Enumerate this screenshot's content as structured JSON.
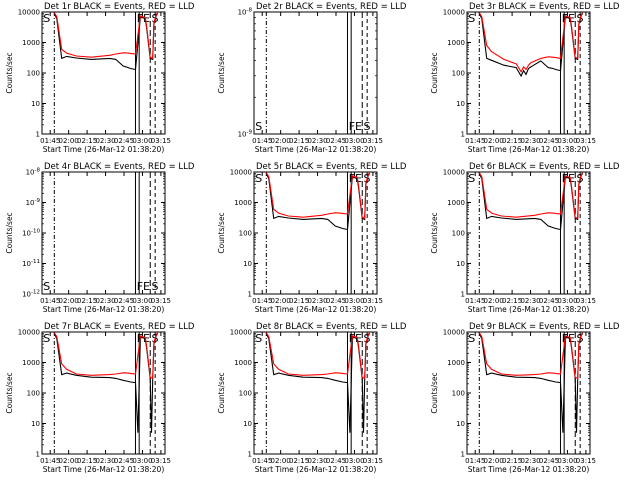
{
  "figure": {
    "background": "#ffffff",
    "events_color": "#000000",
    "lld_color": "#ff0000"
  },
  "chart_data": [
    {
      "type": "line",
      "title": "Det 1r BLACK = Events, RED = LLD",
      "xlabel": "Start Time (26-Mar-12 01:38:20)",
      "ylabel": "Counts/sec",
      "yscale": "log",
      "ylim": [
        1,
        10000
      ],
      "yticks": [
        "1",
        "10",
        "100",
        "1000",
        "10000"
      ],
      "xticks": [
        "01:45",
        "02:00",
        "02:15",
        "02:30",
        "02:45",
        "03:00",
        "03:15"
      ],
      "xlim_minutes_from_start": [
        0,
        100
      ],
      "markers": [
        "S",
        "FE",
        "S"
      ],
      "has_data": true,
      "profile": "a",
      "series": [
        {
          "name": "Events",
          "color": "#000000",
          "x": [
            10,
            12,
            16,
            20,
            28,
            40,
            55,
            60,
            66,
            70,
            72,
            76,
            80,
            84,
            85,
            88,
            90,
            91,
            93,
            94
          ],
          "y": [
            9000,
            6000,
            300,
            350,
            310,
            280,
            300,
            280,
            170,
            150,
            140,
            130,
            7000,
            6000,
            3000,
            300,
            280,
            4000,
            8000,
            9000
          ]
        },
        {
          "name": "LLD",
          "color": "#ff0000",
          "x": [
            10,
            12,
            16,
            20,
            28,
            40,
            55,
            60,
            66,
            70,
            72,
            76,
            80,
            84,
            85,
            88,
            90,
            91,
            93,
            94
          ],
          "y": [
            9500,
            7000,
            600,
            450,
            360,
            330,
            380,
            420,
            460,
            450,
            440,
            420,
            7500,
            6500,
            3500,
            330,
            300,
            4500,
            8500,
            9500
          ]
        }
      ]
    },
    {
      "type": "line",
      "title": "Det 2r BLACK = Events, RED = LLD",
      "xlabel": "Start Time (26-Mar-12 01:38:20)",
      "ylabel": "Counts/sec",
      "yscale": "log",
      "ylim": [
        1e-09,
        1e-08
      ],
      "yticks": [
        "10^-9",
        "10^-8"
      ],
      "xticks": [
        "01:45",
        "02:00",
        "02:15",
        "02:30",
        "02:45",
        "03:00",
        "03:15"
      ],
      "xlim_minutes_from_start": [
        0,
        100
      ],
      "markers": [
        "S",
        "FE",
        "S"
      ],
      "has_data": false,
      "series": []
    },
    {
      "type": "line",
      "title": "Det 3r BLACK = Events, RED = LLD",
      "xlabel": "Start Time (26-Mar-12 01:38:20)",
      "ylabel": "Counts/sec",
      "yscale": "log",
      "ylim": [
        1,
        10000
      ],
      "yticks": [
        "1",
        "10",
        "100",
        "1000",
        "10000"
      ],
      "xticks": [
        "01:45",
        "02:00",
        "02:15",
        "02:30",
        "02:45",
        "03:00",
        "03:15"
      ],
      "xlim_minutes_from_start": [
        0,
        100
      ],
      "markers": [
        "S",
        "FE",
        "S"
      ],
      "has_data": true,
      "profile": "b",
      "series": [
        {
          "name": "Events",
          "color": "#000000",
          "x": [
            10,
            12,
            16,
            20,
            30,
            40,
            44,
            46,
            48,
            50,
            52,
            60,
            66,
            70,
            72,
            76,
            80,
            84,
            85,
            88,
            90,
            91,
            93,
            94
          ],
          "y": [
            9000,
            6000,
            300,
            260,
            180,
            150,
            80,
            120,
            90,
            140,
            160,
            250,
            150,
            140,
            130,
            120,
            7000,
            6000,
            3000,
            300,
            280,
            4000,
            8000,
            9000
          ]
        },
        {
          "name": "LLD",
          "color": "#ff0000",
          "x": [
            10,
            12,
            16,
            20,
            30,
            40,
            44,
            46,
            48,
            50,
            52,
            60,
            66,
            70,
            72,
            76,
            80,
            84,
            85,
            88,
            90,
            91,
            93,
            94
          ],
          "y": [
            9500,
            7000,
            800,
            500,
            280,
            200,
            110,
            160,
            130,
            180,
            220,
            300,
            340,
            330,
            320,
            300,
            7500,
            6500,
            3500,
            330,
            300,
            4500,
            8500,
            9500
          ]
        }
      ]
    },
    {
      "type": "line",
      "title": "Det 4r BLACK = Events, RED = LLD",
      "xlabel": "Start Time (26-Mar-12 01:38:20)",
      "ylabel": "Counts/sec",
      "yscale": "log",
      "ylim": [
        1e-12,
        1e-08
      ],
      "yticks": [
        "10^-12",
        "10^-11",
        "10^-10",
        "10^-9",
        "10^-8"
      ],
      "xticks": [
        "01:45",
        "02:00",
        "02:15",
        "02:30",
        "02:45",
        "03:00",
        "03:15"
      ],
      "xlim_minutes_from_start": [
        0,
        100
      ],
      "markers": [
        "S",
        "FE",
        "S"
      ],
      "has_data": false,
      "series": []
    },
    {
      "type": "line",
      "title": "Det 5r BLACK = Events, RED = LLD",
      "xlabel": "Start Time (26-Mar-12 01:38:20)",
      "ylabel": "Counts/sec",
      "yscale": "log",
      "ylim": [
        1,
        10000
      ],
      "yticks": [
        "1",
        "10",
        "100",
        "1000",
        "10000"
      ],
      "xticks": [
        "01:45",
        "02:00",
        "02:15",
        "02:30",
        "02:45",
        "03:00",
        "03:15"
      ],
      "xlim_minutes_from_start": [
        0,
        100
      ],
      "markers": [
        "S",
        "FE",
        "S"
      ],
      "has_data": true,
      "profile": "a",
      "series": [
        {
          "name": "Events",
          "color": "#000000",
          "x": [
            10,
            12,
            16,
            20,
            28,
            40,
            55,
            60,
            66,
            70,
            72,
            76,
            80,
            84,
            85,
            88,
            90,
            91,
            93,
            94
          ],
          "y": [
            9000,
            6000,
            300,
            350,
            310,
            280,
            300,
            280,
            170,
            150,
            140,
            130,
            7000,
            6000,
            3000,
            300,
            280,
            4000,
            8000,
            9000
          ]
        },
        {
          "name": "LLD",
          "color": "#ff0000",
          "x": [
            10,
            12,
            16,
            20,
            28,
            40,
            55,
            60,
            66,
            70,
            72,
            76,
            80,
            84,
            85,
            88,
            90,
            91,
            93,
            94
          ],
          "y": [
            9500,
            7000,
            600,
            450,
            360,
            330,
            380,
            420,
            460,
            450,
            440,
            420,
            7500,
            6500,
            3500,
            330,
            300,
            4500,
            8500,
            9500
          ]
        }
      ]
    },
    {
      "type": "line",
      "title": "Det 6r BLACK = Events, RED = LLD",
      "xlabel": "Start Time (26-Mar-12 01:38:20)",
      "ylabel": "Counts/sec",
      "yscale": "log",
      "ylim": [
        1,
        10000
      ],
      "yticks": [
        "1",
        "10",
        "100",
        "1000",
        "10000"
      ],
      "xticks": [
        "01:45",
        "02:00",
        "02:15",
        "02:30",
        "02:45",
        "03:00",
        "03:15"
      ],
      "xlim_minutes_from_start": [
        0,
        100
      ],
      "markers": [
        "S",
        "FE",
        "S"
      ],
      "has_data": true,
      "profile": "a",
      "series": [
        {
          "name": "Events",
          "color": "#000000",
          "x": [
            10,
            12,
            16,
            20,
            28,
            40,
            55,
            60,
            66,
            70,
            72,
            76,
            80,
            84,
            85,
            88,
            90,
            91,
            93,
            94
          ],
          "y": [
            9000,
            6000,
            300,
            350,
            310,
            280,
            300,
            280,
            170,
            150,
            140,
            130,
            7000,
            6000,
            3000,
            300,
            280,
            4000,
            8000,
            9000
          ]
        },
        {
          "name": "LLD",
          "color": "#ff0000",
          "x": [
            10,
            12,
            16,
            20,
            28,
            40,
            55,
            60,
            66,
            70,
            72,
            76,
            80,
            84,
            85,
            88,
            90,
            91,
            93,
            94
          ],
          "y": [
            9500,
            7000,
            600,
            450,
            360,
            330,
            380,
            420,
            460,
            450,
            440,
            420,
            7500,
            6500,
            3500,
            330,
            300,
            4500,
            8500,
            9500
          ]
        }
      ]
    },
    {
      "type": "line",
      "title": "Det 7r BLACK = Events, RED = LLD",
      "xlabel": "Start Time (26-Mar-12 01:38:20)",
      "ylabel": "Counts/sec",
      "yscale": "log",
      "ylim": [
        1,
        10000
      ],
      "yticks": [
        "1",
        "10",
        "100",
        "1000",
        "10000"
      ],
      "xticks": [
        "01:45",
        "02:00",
        "02:15",
        "02:30",
        "02:45",
        "03:00",
        "03:15"
      ],
      "xlim_minutes_from_start": [
        0,
        100
      ],
      "markers": [
        "S",
        "FE",
        "S"
      ],
      "has_data": true,
      "profile": "c",
      "series": [
        {
          "name": "Events",
          "color": "#000000",
          "x": [
            10,
            12,
            16,
            20,
            28,
            40,
            55,
            60,
            66,
            70,
            72,
            76,
            78,
            79,
            80,
            84,
            85,
            88,
            89,
            90,
            91,
            93,
            94
          ],
          "y": [
            9000,
            6000,
            400,
            450,
            380,
            330,
            320,
            300,
            260,
            240,
            230,
            220,
            5,
            220,
            7000,
            6000,
            3000,
            300,
            5,
            280,
            4000,
            8000,
            9000
          ]
        },
        {
          "name": "LLD",
          "color": "#ff0000",
          "x": [
            10,
            12,
            16,
            20,
            28,
            40,
            55,
            60,
            66,
            70,
            72,
            76,
            80,
            84,
            85,
            88,
            90,
            91,
            93,
            94
          ],
          "y": [
            9500,
            7000,
            900,
            600,
            420,
            380,
            400,
            420,
            460,
            450,
            440,
            420,
            7500,
            6500,
            3500,
            330,
            300,
            4500,
            8500,
            9500
          ]
        }
      ]
    },
    {
      "type": "line",
      "title": "Det 8r BLACK = Events, RED = LLD",
      "xlabel": "Start Time (26-Mar-12 01:38:20)",
      "ylabel": "Counts/sec",
      "yscale": "log",
      "ylim": [
        1,
        10000
      ],
      "yticks": [
        "1",
        "10",
        "100",
        "1000",
        "10000"
      ],
      "xticks": [
        "01:45",
        "02:00",
        "02:15",
        "02:30",
        "02:45",
        "03:00",
        "03:15"
      ],
      "xlim_minutes_from_start": [
        0,
        100
      ],
      "markers": [
        "S",
        "FE",
        "S"
      ],
      "has_data": true,
      "profile": "c",
      "series": [
        {
          "name": "Events",
          "color": "#000000",
          "x": [
            10,
            12,
            16,
            20,
            28,
            40,
            55,
            60,
            66,
            70,
            72,
            76,
            78,
            79,
            80,
            84,
            85,
            88,
            89,
            90,
            91,
            93,
            94
          ],
          "y": [
            9000,
            6000,
            400,
            450,
            380,
            330,
            320,
            300,
            260,
            240,
            230,
            220,
            5,
            220,
            7000,
            6000,
            3000,
            300,
            5,
            280,
            4000,
            8000,
            9000
          ]
        },
        {
          "name": "LLD",
          "color": "#ff0000",
          "x": [
            10,
            12,
            16,
            20,
            28,
            40,
            55,
            60,
            66,
            70,
            72,
            76,
            80,
            84,
            85,
            88,
            90,
            91,
            93,
            94
          ],
          "y": [
            9500,
            7000,
            900,
            600,
            420,
            380,
            400,
            420,
            460,
            450,
            440,
            420,
            7500,
            6500,
            3500,
            330,
            300,
            4500,
            8500,
            9500
          ]
        }
      ]
    },
    {
      "type": "line",
      "title": "Det 9r BLACK = Events, RED = LLD",
      "xlabel": "Start Time (26-Mar-12 01:38:20)",
      "ylabel": "Counts/sec",
      "yscale": "log",
      "ylim": [
        1,
        10000
      ],
      "yticks": [
        "1",
        "10",
        "100",
        "1000",
        "10000"
      ],
      "xticks": [
        "01:45",
        "02:00",
        "02:15",
        "02:30",
        "02:45",
        "03:00",
        "03:15"
      ],
      "xlim_minutes_from_start": [
        0,
        100
      ],
      "markers": [
        "S",
        "FE",
        "S"
      ],
      "has_data": true,
      "profile": "c",
      "series": [
        {
          "name": "Events",
          "color": "#000000",
          "x": [
            10,
            12,
            16,
            20,
            28,
            40,
            55,
            60,
            66,
            70,
            72,
            76,
            78,
            79,
            80,
            84,
            85,
            88,
            89,
            90,
            91,
            93,
            94
          ],
          "y": [
            9000,
            6000,
            400,
            450,
            380,
            330,
            320,
            300,
            260,
            240,
            230,
            220,
            5,
            220,
            7000,
            6000,
            3000,
            300,
            5,
            280,
            4000,
            8000,
            9000
          ]
        },
        {
          "name": "LLD",
          "color": "#ff0000",
          "x": [
            10,
            12,
            16,
            20,
            28,
            40,
            55,
            60,
            66,
            70,
            72,
            76,
            80,
            84,
            85,
            88,
            90,
            91,
            93,
            94
          ],
          "y": [
            9500,
            7000,
            900,
            600,
            420,
            380,
            400,
            420,
            460,
            450,
            440,
            420,
            7500,
            6500,
            3500,
            330,
            300,
            4500,
            8500,
            9500
          ]
        }
      ]
    }
  ]
}
